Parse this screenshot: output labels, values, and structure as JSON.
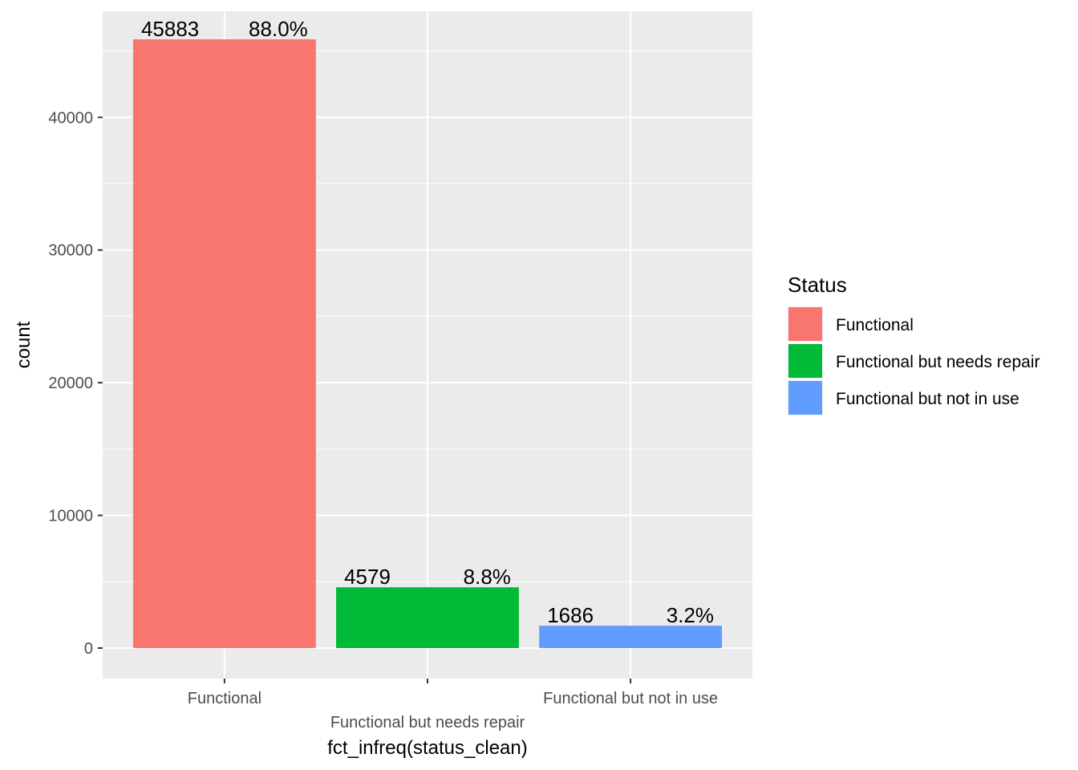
{
  "chart_data": {
    "type": "bar",
    "categories": [
      "Functional",
      "Functional but needs repair",
      "Functional but not in use"
    ],
    "values": [
      45883,
      4579,
      1686
    ],
    "percent_labels": [
      "88.0%",
      "8.8%",
      "3.2%"
    ],
    "count_labels": [
      "45883",
      "4579",
      "1686"
    ],
    "colors": [
      "#F8766D",
      "#00BA38",
      "#619CFF"
    ],
    "ylim": [
      -2300,
      48000
    ],
    "yticks": [
      0,
      10000,
      20000,
      30000,
      40000
    ],
    "ytick_labels": [
      "0",
      "10000",
      "20000",
      "30000",
      "40000"
    ],
    "minor_yticks": [
      5000,
      15000,
      25000,
      35000,
      45000
    ],
    "xlabel": "fct_infreq(status_clean)",
    "ylabel": "count",
    "grid": true,
    "panel_background": "#EBEBEB",
    "legend": {
      "title": "Status",
      "placement": "right",
      "entries": [
        "Functional",
        "Functional but needs repair",
        "Functional but not in use"
      ]
    }
  }
}
